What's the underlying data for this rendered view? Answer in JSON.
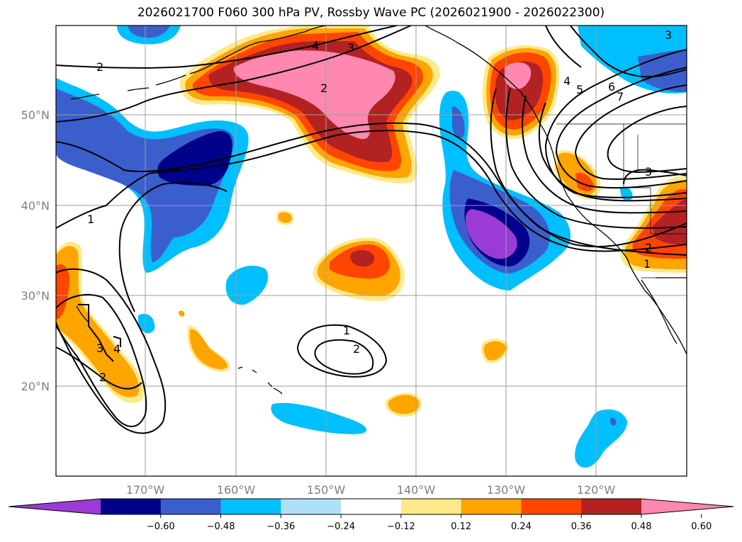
{
  "title": "2026021700 F060 300 hPa PV, Rossby Wave PC (2026021900 - 2026022300)",
  "map": {
    "lon_range": [
      180,
      110
    ],
    "lat_range": [
      10,
      60
    ],
    "lat_ticks": [
      "50°N",
      "40°N",
      "30°N",
      "20°N"
    ],
    "lon_ticks": [
      "170°W",
      "160°W",
      "150°W",
      "140°W",
      "130°W",
      "120°W"
    ],
    "grid": true
  },
  "colorbar": {
    "ticks": [
      "−0.60",
      "−0.48",
      "−0.36",
      "−0.24",
      "−0.12",
      "0.12",
      "0.24",
      "0.36",
      "0.48",
      "0.60"
    ],
    "colors": [
      "#9a3bd6",
      "#00008b",
      "#3a5fcd",
      "#00bfff",
      "#b0e0f8",
      "#ffffff",
      "#ffe98a",
      "#ffa500",
      "#ff4500",
      "#b22222",
      "#ff88b0"
    ],
    "extend": "both"
  },
  "fill_colors": {
    "neg_strong": "#9a3bd6",
    "neg_dark": "#00008b",
    "neg_mid": "#3a5fcd",
    "neg_light": "#00bfff",
    "neg_pale": "#b0e0f8",
    "pos_pale": "#ffe98a",
    "pos_light": "#ffa500",
    "pos_mid": "#ff4500",
    "pos_dark": "#b22222",
    "pos_strong": "#ff88b0"
  },
  "contour_labels": [
    "2",
    "2",
    "3",
    "4",
    "1",
    "1",
    "2",
    "3",
    "4",
    "2",
    "4",
    "5",
    "6",
    "7",
    "3",
    "2",
    "1",
    "3"
  ]
}
